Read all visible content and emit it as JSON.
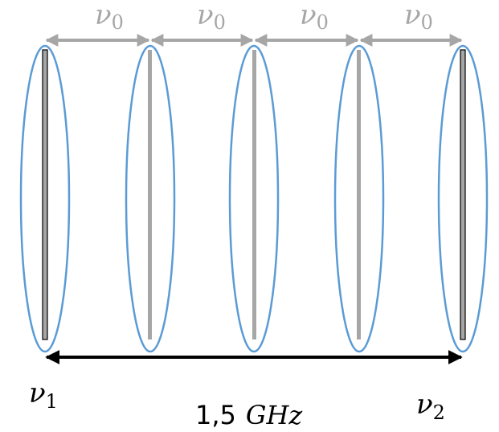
{
  "spacing_labels": [
    {
      "symbol": "ν",
      "subscript": "0"
    },
    {
      "symbol": "ν",
      "subscript": "0"
    },
    {
      "symbol": "ν",
      "subscript": "0"
    },
    {
      "symbol": "ν",
      "subscript": "0"
    }
  ],
  "left_label": {
    "symbol": "ν",
    "subscript": "1"
  },
  "right_label": {
    "symbol": "ν",
    "subscript": "2"
  },
  "span_label": {
    "value": "1,5",
    "unit": "GHz"
  }
}
